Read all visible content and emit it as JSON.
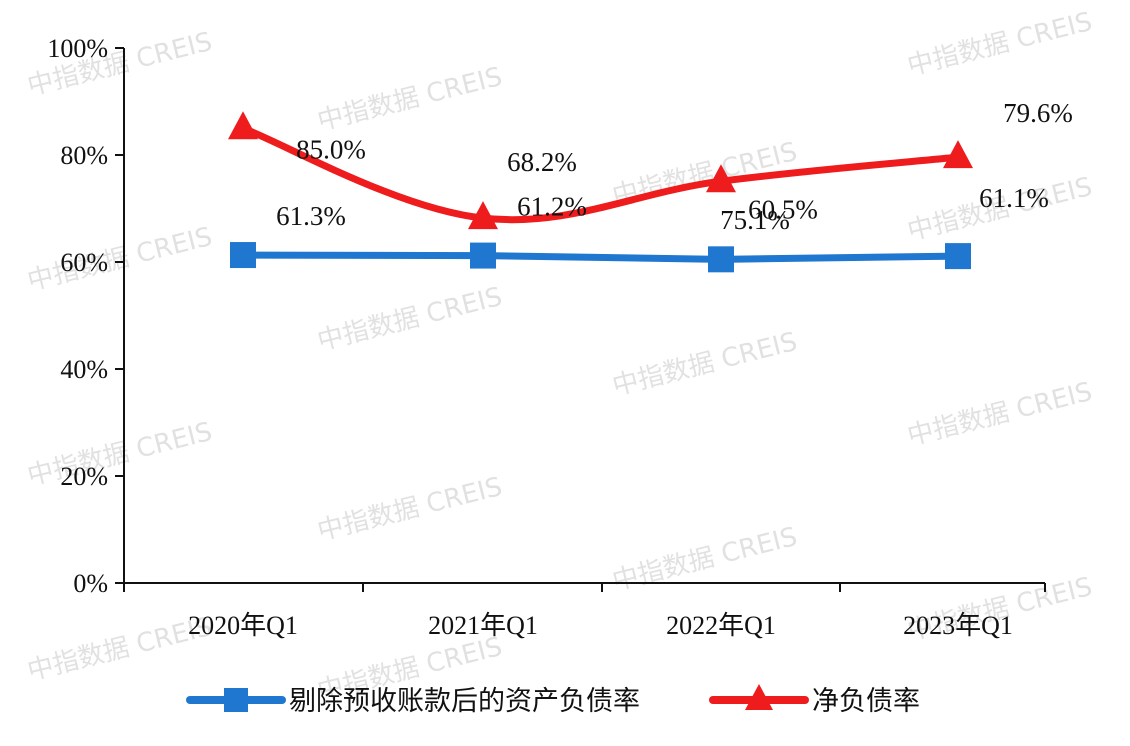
{
  "chart_data": {
    "type": "line",
    "categories": [
      "2020年Q1",
      "2021年Q1",
      "2022年Q1",
      "2023年Q1"
    ],
    "ylim": [
      0,
      100
    ],
    "yticks": [
      "0%",
      "20%",
      "40%",
      "60%",
      "80%",
      "100%"
    ],
    "ytick_values": [
      0,
      20,
      40,
      60,
      80,
      100
    ],
    "grid": false,
    "legend_position": "bottom",
    "series": [
      {
        "name": "剔除预收账款后的资产负债率",
        "values": [
          61.3,
          61.2,
          60.5,
          61.1
        ],
        "labels": [
          "61.3%",
          "61.2%",
          "60.5%",
          "61.1%"
        ],
        "color": "#1f77d0",
        "marker": "square",
        "curve": "straight"
      },
      {
        "name": "净负债率",
        "values": [
          85.0,
          68.2,
          75.1,
          79.6
        ],
        "labels": [
          "85.0%",
          "68.2%",
          "75.1%",
          "79.6%"
        ],
        "color": "#ee1c1c",
        "marker": "triangle",
        "curve": "smooth"
      }
    ]
  },
  "watermark": "中指数据 CREIS"
}
